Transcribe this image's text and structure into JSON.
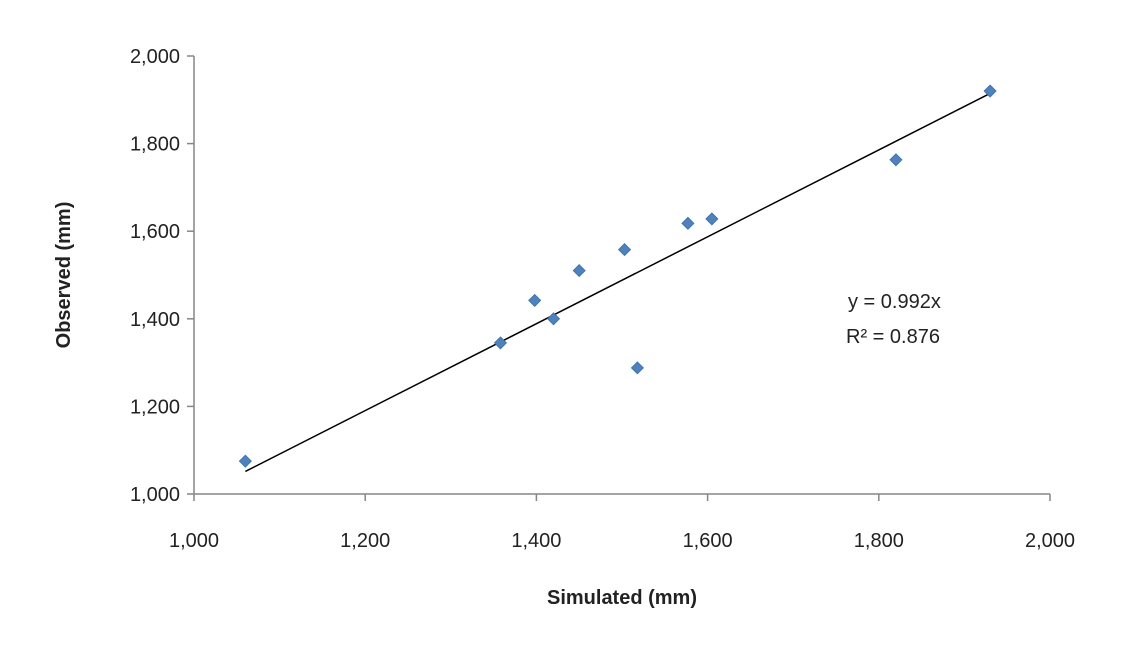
{
  "chart_data": {
    "type": "scatter",
    "xlabel": "Simulated (mm)",
    "ylabel": "Observed (mm)",
    "xlim": [
      1000,
      2000
    ],
    "ylim": [
      1000,
      2000
    ],
    "x_ticks": [
      1000,
      1200,
      1400,
      1600,
      1800,
      2000
    ],
    "y_ticks": [
      1000,
      1200,
      1400,
      1600,
      1800,
      2000
    ],
    "x_tick_labels": [
      "1,000",
      "1,200",
      "1,400",
      "1,600",
      "1,800",
      "2,000"
    ],
    "y_tick_labels": [
      "1,000",
      "1,200",
      "1,400",
      "1,600",
      "1,800",
      "2,000"
    ],
    "grid": false,
    "series": [
      {
        "color": "#4f81bd",
        "marker": "diamond",
        "points": [
          {
            "x": 1060,
            "y": 1075
          },
          {
            "x": 1358,
            "y": 1345
          },
          {
            "x": 1398,
            "y": 1442
          },
          {
            "x": 1420,
            "y": 1400
          },
          {
            "x": 1450,
            "y": 1510
          },
          {
            "x": 1503,
            "y": 1558
          },
          {
            "x": 1518,
            "y": 1288
          },
          {
            "x": 1577,
            "y": 1618
          },
          {
            "x": 1605,
            "y": 1628
          },
          {
            "x": 1820,
            "y": 1763
          },
          {
            "x": 1930,
            "y": 1920
          }
        ]
      }
    ],
    "trendline": {
      "slope": 0.992,
      "x_range": [
        1060,
        1930
      ],
      "color": "#000000"
    },
    "annotations": {
      "equation": "y = 0.992x",
      "r_squared": "R² = 0.876"
    }
  }
}
